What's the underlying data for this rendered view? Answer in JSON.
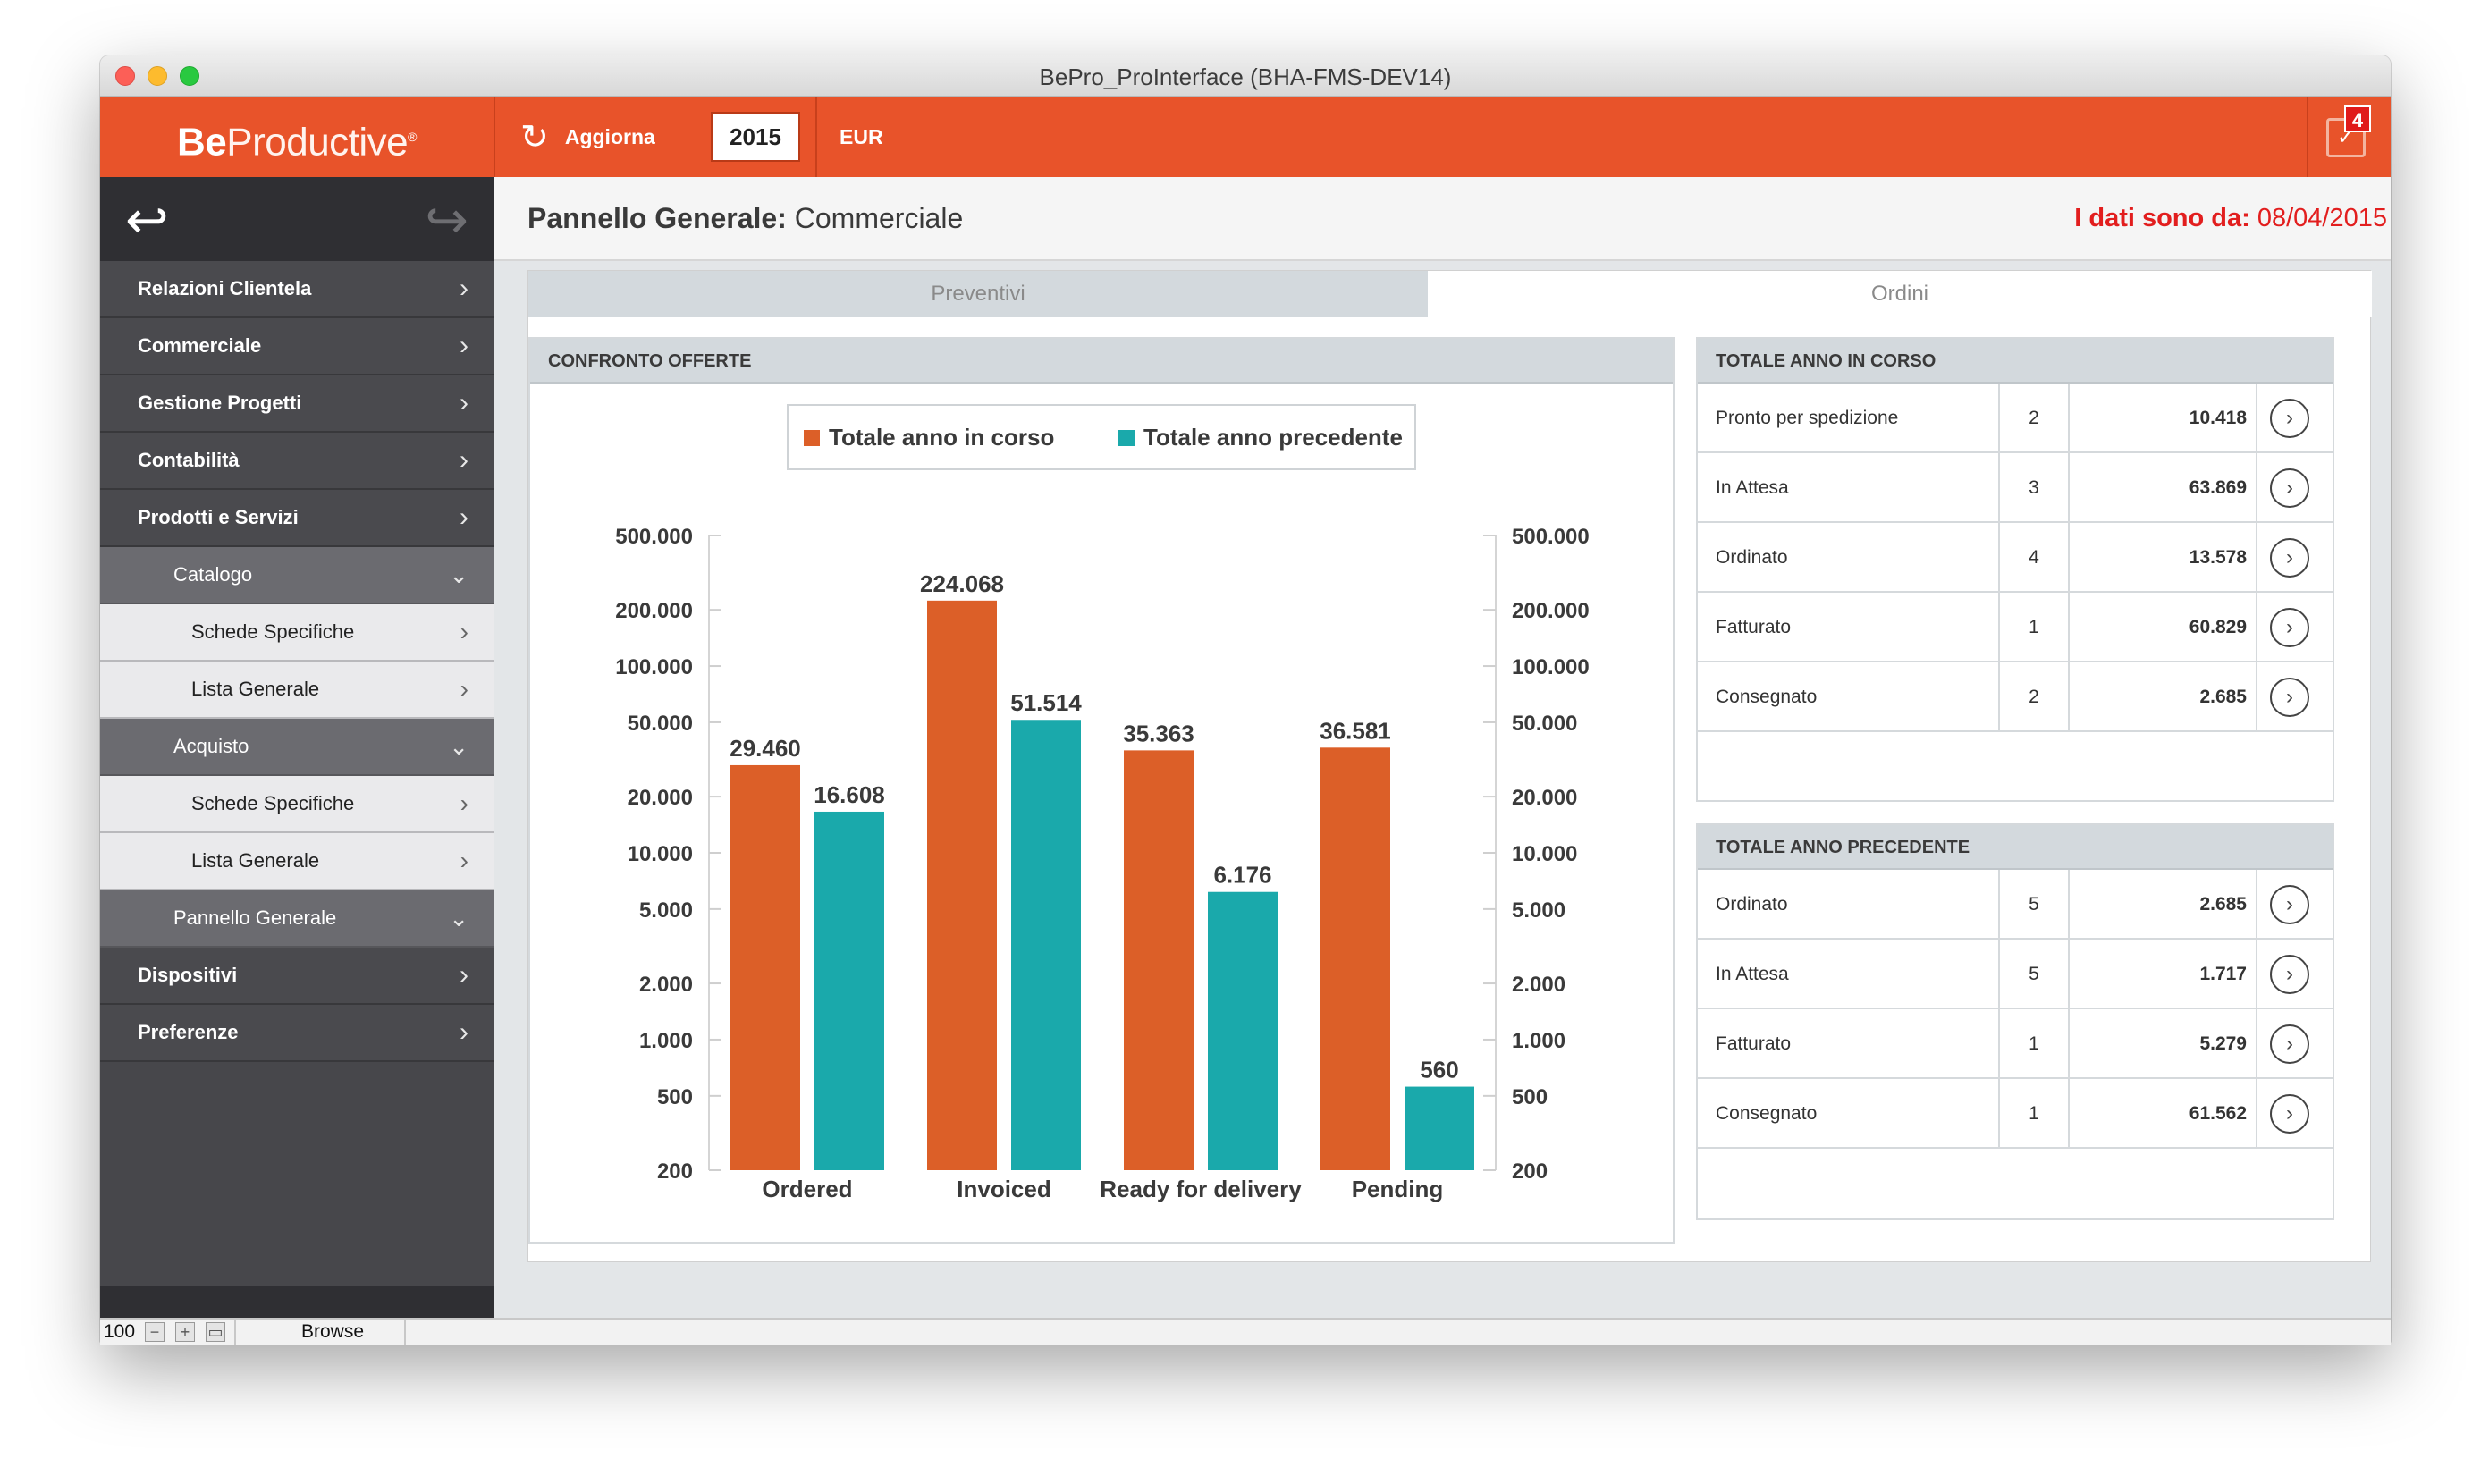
{
  "window": {
    "title": "BePro_ProInterface (BHA-FMS-DEV14)"
  },
  "topbar": {
    "logo_bold": "Be",
    "logo_light": "Productive",
    "refresh_label": "Aggiorna",
    "year": "2015",
    "currency": "EUR",
    "notification_count": "4",
    "accent_color": "#e8532a"
  },
  "sidebar": {
    "items": [
      {
        "label": "Relazioni Clientela"
      },
      {
        "label": "Commerciale"
      },
      {
        "label": "Gestione Progetti"
      },
      {
        "label": "Contabilità"
      },
      {
        "label": "Prodotti e Servizi"
      },
      {
        "label": "Catalogo"
      },
      {
        "label": "Schede Specifiche"
      },
      {
        "label": "Lista Generale"
      },
      {
        "label": "Acquisto"
      },
      {
        "label": "Schede Specifiche"
      },
      {
        "label": "Lista Generale"
      },
      {
        "label": "Pannello Generale"
      },
      {
        "label": "Dispositivi"
      },
      {
        "label": "Preferenze"
      }
    ]
  },
  "header": {
    "title_bold": "Pannello Generale:",
    "title_rest": " Commerciale",
    "date_label": "I dati sono da:",
    "date_value": " 08/04/2015"
  },
  "tabs": [
    {
      "label": "Preventivi"
    },
    {
      "label": "Ordini"
    }
  ],
  "chart_panel": {
    "title": "CONFRONTO OFFERTE"
  },
  "chart_data": {
    "type": "bar",
    "y_scale": "log",
    "categories": [
      "Ordered",
      "Invoiced",
      "Ready for delivery",
      "Pending"
    ],
    "series": [
      {
        "name": "Totale anno in corso",
        "color": "#dc5f28",
        "values": [
          29460,
          224068,
          35363,
          36581
        ],
        "labels": [
          "29.460",
          "224.068",
          "35.363",
          "36.581"
        ]
      },
      {
        "name": "Totale anno precedente",
        "color": "#1aa9ab",
        "values": [
          16608,
          51514,
          6176,
          560
        ],
        "labels": [
          "16.608",
          "51.514",
          "6.176",
          "560"
        ]
      }
    ],
    "ylim": [
      200,
      500000
    ],
    "yticks": [
      500000,
      200000,
      100000,
      50000,
      20000,
      10000,
      5000,
      2000,
      1000,
      500,
      200
    ],
    "ytick_labels": [
      "500.000",
      "200.000",
      "100.000",
      "50.000",
      "20.000",
      "10.000",
      "5.000",
      "2.000",
      "1.000",
      "500",
      "200"
    ],
    "legend_position": "top-center",
    "title": "",
    "xlabel": "",
    "ylabel": ""
  },
  "table_current": {
    "title": "TOTALE ANNO IN CORSO",
    "rows": [
      {
        "label": "Pronto per spedizione",
        "count": "2",
        "value": "10.418"
      },
      {
        "label": "In Attesa",
        "count": "3",
        "value": "63.869"
      },
      {
        "label": "Ordinato",
        "count": "4",
        "value": "13.578"
      },
      {
        "label": "Fatturato",
        "count": "1",
        "value": "60.829"
      },
      {
        "label": "Consegnato",
        "count": "2",
        "value": "2.685"
      }
    ]
  },
  "table_previous": {
    "title": "TOTALE ANNO PRECEDENTE",
    "rows": [
      {
        "label": "Ordinato",
        "count": "5",
        "value": "2.685"
      },
      {
        "label": "In Attesa",
        "count": "5",
        "value": "1.717"
      },
      {
        "label": "Fatturato",
        "count": "1",
        "value": "5.279"
      },
      {
        "label": "Consegnato",
        "count": "1",
        "value": "61.562"
      }
    ]
  },
  "statusbar": {
    "zoom": "100",
    "mode": "Browse"
  }
}
